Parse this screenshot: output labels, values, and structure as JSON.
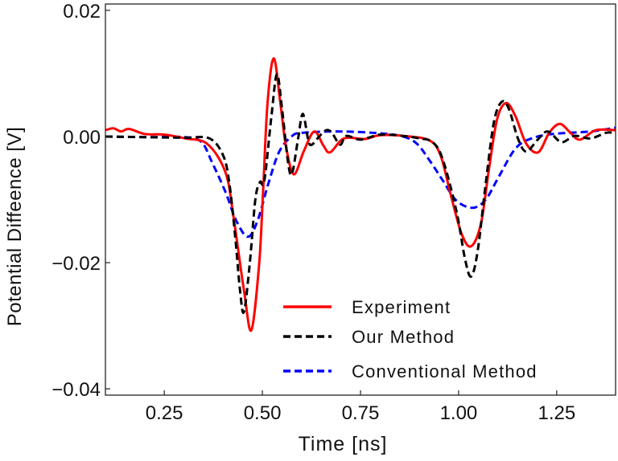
{
  "chart_data": {
    "type": "line",
    "xlabel": "Time [ns]",
    "ylabel": "Potential Diffeence [V]",
    "xlim": [
      0.1,
      1.4
    ],
    "ylim": [
      -0.041,
      0.021
    ],
    "xticks": [
      0.25,
      0.5,
      0.75,
      1.0,
      1.25
    ],
    "xtick_labels": [
      "0.25",
      "0.50",
      "0.75",
      "1.00",
      "1.25"
    ],
    "yticks": [
      0.02,
      0.0,
      -0.02,
      -0.04
    ],
    "ytick_labels": [
      "0.02",
      "0.00",
      "−0.02",
      "−0.04"
    ],
    "grid": false,
    "legend_position": "bottom-right",
    "series": [
      {
        "name": "Experiment",
        "color": "#ff0000",
        "style": "solid",
        "x": [
          0.1,
          0.12,
          0.14,
          0.16,
          0.2,
          0.25,
          0.303,
          0.36,
          0.406,
          0.426,
          0.453,
          0.472,
          0.492,
          0.502,
          0.513,
          0.529,
          0.546,
          0.56,
          0.58,
          0.605,
          0.632,
          0.656,
          0.673,
          0.708,
          0.76,
          0.8,
          0.858,
          0.925,
          0.954,
          0.981,
          1.008,
          1.032,
          1.057,
          1.077,
          1.098,
          1.121,
          1.145,
          1.172,
          1.203,
          1.231,
          1.258,
          1.285,
          1.309,
          1.35,
          1.4
        ],
        "y": [
          0.001,
          0.0013,
          0.0008,
          0.0012,
          0.0004,
          0.0003,
          -0.0003,
          -0.0012,
          -0.0057,
          -0.0126,
          -0.0244,
          -0.0307,
          -0.02,
          -0.0083,
          0.0052,
          0.0124,
          0.0052,
          -0.0015,
          -0.006,
          -0.0024,
          0.0008,
          -0.0015,
          -0.0025,
          -0.0003,
          -0.0004,
          0.0002,
          0.0001,
          -0.0006,
          -0.003,
          -0.0095,
          -0.0155,
          -0.0174,
          -0.0138,
          -0.0053,
          0.0027,
          0.0053,
          0.0032,
          -0.0011,
          -0.0025,
          0.0006,
          0.002,
          0.0006,
          -0.0005,
          0.001,
          0.001
        ]
      },
      {
        "name": "Our Method",
        "color": "#000000",
        "style": "dashed",
        "x": [
          0.1,
          0.2,
          0.3,
          0.365,
          0.4,
          0.416,
          0.431,
          0.443,
          0.453,
          0.468,
          0.482,
          0.494,
          0.505,
          0.523,
          0.537,
          0.55,
          0.566,
          0.576,
          0.591,
          0.603,
          0.617,
          0.626,
          0.646,
          0.663,
          0.677,
          0.698,
          0.714,
          0.75,
          0.8,
          0.858,
          0.899,
          0.934,
          0.96,
          0.995,
          1.016,
          1.032,
          1.049,
          1.069,
          1.09,
          1.11,
          1.128,
          1.151,
          1.172,
          1.2,
          1.227,
          1.262,
          1.295,
          1.336,
          1.377,
          1.4
        ],
        "y": [
          0.0,
          -0.0001,
          -0.0002,
          -0.0003,
          -0.003,
          -0.0075,
          -0.016,
          -0.0244,
          -0.0278,
          -0.02,
          -0.01,
          -0.0072,
          -0.007,
          0.0032,
          0.0099,
          0.0044,
          -0.0044,
          -0.0058,
          -0.0003,
          0.0036,
          -0.0006,
          -0.0013,
          0.0001,
          0.001,
          0.0006,
          -0.0013,
          0.0001,
          -0.0005,
          0.0003,
          0.0001,
          -0.0003,
          -0.0009,
          -0.0037,
          -0.012,
          -0.0193,
          -0.0222,
          -0.018,
          -0.0075,
          0.0023,
          0.0055,
          0.0044,
          -0.0003,
          -0.0024,
          -0.0006,
          0.0008,
          -0.0009,
          0.0001,
          -0.0003,
          0.0006,
          0.0005
        ]
      },
      {
        "name": "Conventional Method",
        "color": "#0000ff",
        "style": "dashed",
        "x": [
          0.1,
          0.2,
          0.303,
          0.345,
          0.371,
          0.406,
          0.433,
          0.463,
          0.488,
          0.515,
          0.543,
          0.576,
          0.605,
          0.7,
          0.8,
          0.858,
          0.893,
          0.925,
          0.96,
          0.995,
          1.036,
          1.069,
          1.104,
          1.145,
          1.186,
          1.242,
          1.336,
          1.4
        ],
        "y": [
          0.0,
          -0.0001,
          -0.0001,
          -0.0009,
          -0.004,
          -0.0088,
          -0.0133,
          -0.0159,
          -0.0133,
          -0.0075,
          -0.0024,
          0.0001,
          0.0006,
          0.0008,
          0.0005,
          0.0,
          -0.0011,
          -0.0037,
          -0.007,
          -0.0102,
          -0.0113,
          -0.01,
          -0.0062,
          -0.0019,
          -0.0003,
          0.0004,
          0.0008,
          0.0014
        ]
      }
    ]
  }
}
